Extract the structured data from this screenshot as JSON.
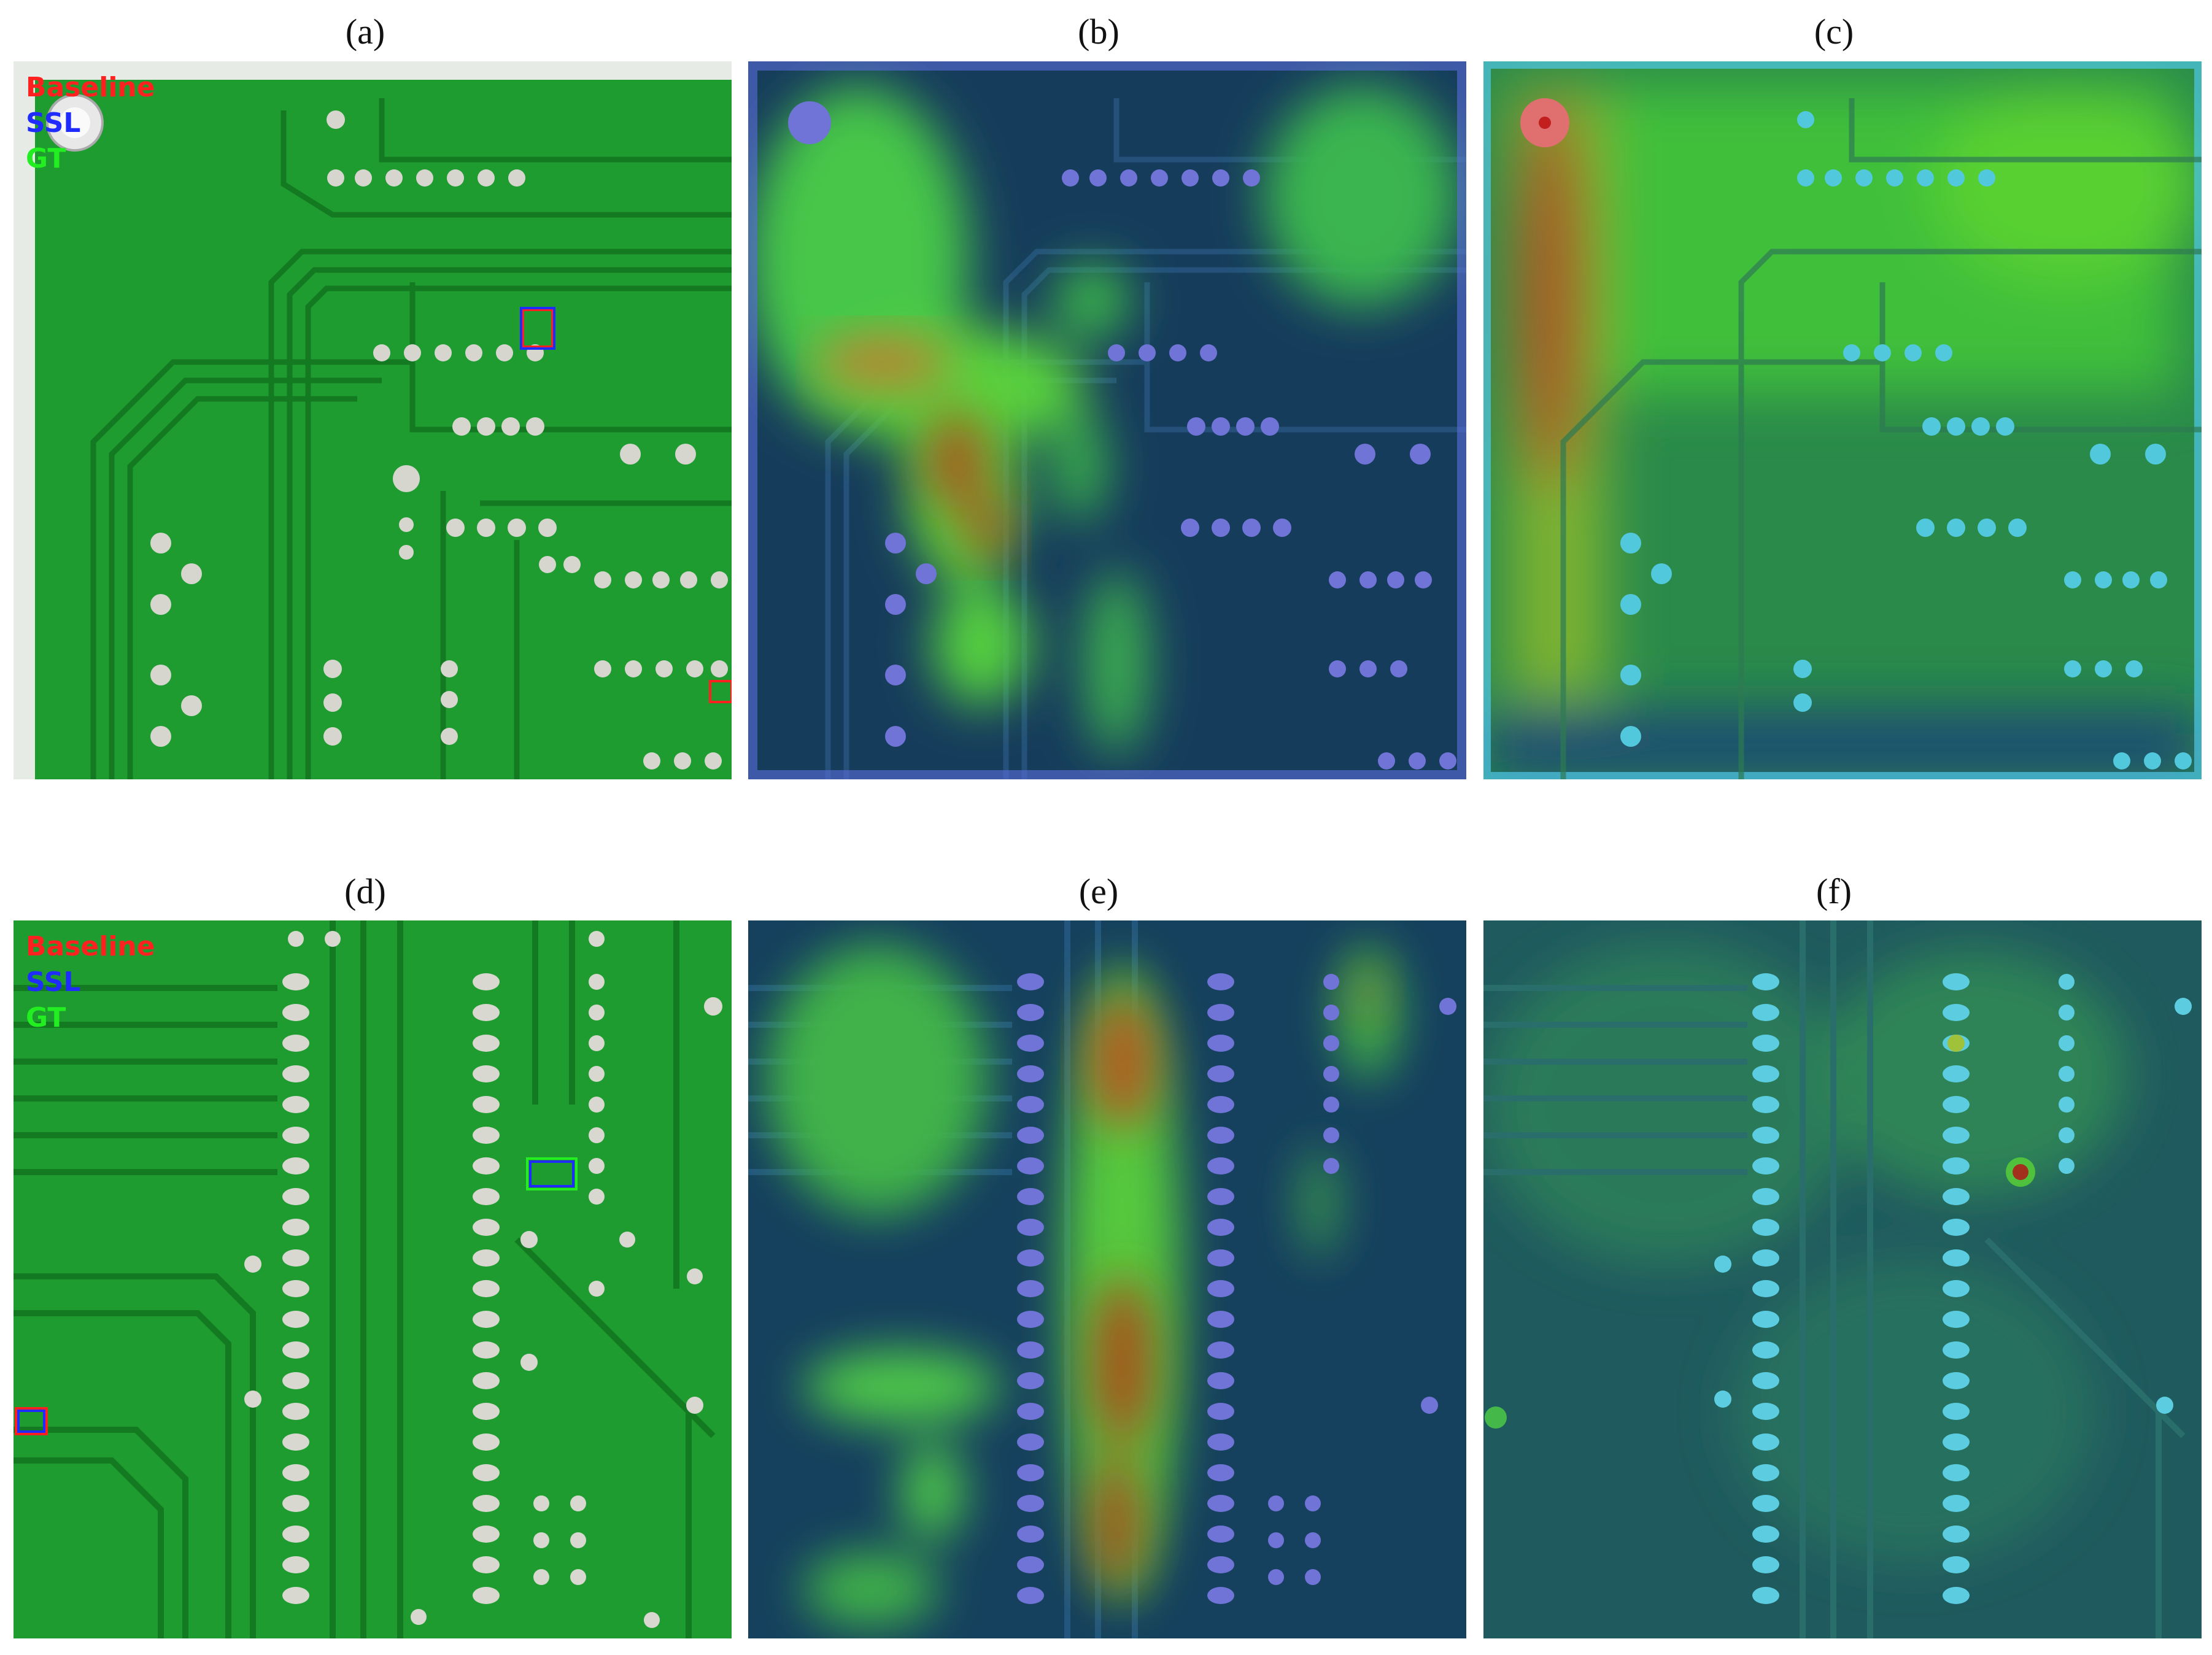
{
  "panels": [
    {
      "label": "(a)"
    },
    {
      "label": "(b)"
    },
    {
      "label": "(c)"
    },
    {
      "label": "(d)"
    },
    {
      "label": "(e)"
    },
    {
      "label": "(f)"
    }
  ],
  "legend": {
    "baseline": "Baseline",
    "ssl": "SSL",
    "gt": "GT"
  },
  "colors": {
    "baseline": "#ff2020",
    "ssl": "#1f2bff",
    "gt": "#22ee22",
    "pcb_green": "#1e9a2e",
    "pcb_trace": "#137a22",
    "pad": "#d8d8d0"
  }
}
